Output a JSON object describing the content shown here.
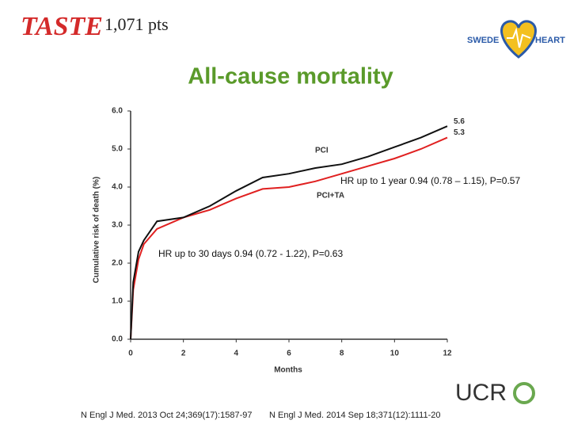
{
  "header": {
    "brand": "TASTE",
    "count": "1,071 pts"
  },
  "logos": {
    "swede": "SWEDE",
    "heart": "HEART",
    "ucr": "UCR"
  },
  "citations": [
    "N Engl J Med. 2013 Oct 24;369(17):1587-97",
    "N Engl J Med. 2014 Sep 18;371(12):1111-20"
  ],
  "chart_data": {
    "type": "line",
    "title": "All-cause mortality",
    "x_label": "Months",
    "y_label": "Cumulative risk of death (%)",
    "x": [
      0,
      0.1,
      0.3,
      0.5,
      1,
      2,
      3,
      4,
      5,
      6,
      7,
      8,
      9,
      10,
      11,
      12
    ],
    "series": [
      {
        "name": "PCI",
        "color": "#111111",
        "values": [
          0,
          1.5,
          2.3,
          2.6,
          3.1,
          3.2,
          3.5,
          3.9,
          4.25,
          4.35,
          4.5,
          4.6,
          4.8,
          5.05,
          5.3,
          5.6
        ],
        "value_labels": [
          null,
          null,
          null,
          null,
          null,
          null,
          null,
          null,
          null,
          null,
          null,
          null,
          null,
          null,
          null,
          "5.6"
        ]
      },
      {
        "name": "PCI+TA",
        "color": "#e02020",
        "values": [
          0,
          1.3,
          2.1,
          2.5,
          2.9,
          3.2,
          3.4,
          3.7,
          3.95,
          4.0,
          4.15,
          4.35,
          4.55,
          4.75,
          5.0,
          5.3
        ],
        "value_labels": [
          null,
          null,
          null,
          null,
          null,
          null,
          null,
          null,
          null,
          null,
          null,
          null,
          null,
          null,
          null,
          "5.3"
        ]
      }
    ],
    "annotations": [
      "HR up to 1 year 0.94 (0.78 – 1.15), P=0.57",
      "HR up to 30 days 0.94 (0.72 - 1.22), P=0.63"
    ],
    "xlim": [
      0,
      12
    ],
    "ylim": [
      0,
      6
    ],
    "xticks": [
      0,
      2,
      4,
      6,
      8,
      10,
      12
    ],
    "yticks": [
      {
        "value": 0,
        "label": "0.0"
      },
      {
        "value": 1,
        "label": "1.0"
      },
      {
        "value": 2,
        "label": "2.0"
      },
      {
        "value": 3,
        "label": "3.0"
      },
      {
        "value": 4,
        "label": "4.0"
      },
      {
        "value": 5,
        "label": "5.0"
      },
      {
        "value": 6,
        "label": "6.0"
      }
    ],
    "grid": false
  }
}
